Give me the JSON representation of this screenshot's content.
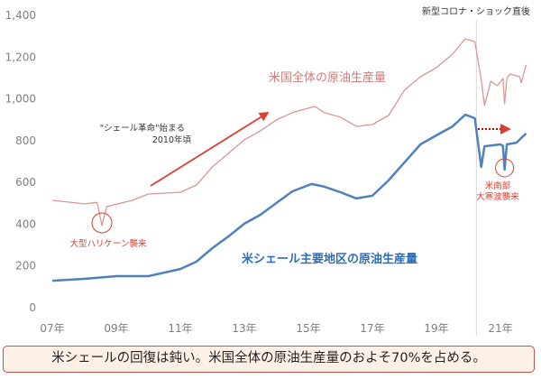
{
  "chart_data": {
    "type": "line",
    "title": "",
    "xlabel": "",
    "ylabel": "",
    "ylim": [
      0,
      1400
    ],
    "yticks": [
      "0",
      "200",
      "400",
      "600",
      "800",
      "1,000",
      "1,200",
      "1,400"
    ],
    "ytick_values": [
      0,
      200,
      400,
      600,
      800,
      1000,
      1200,
      1400
    ],
    "xticks": [
      "07年",
      "09年",
      "11年",
      "13年",
      "15年",
      "17年",
      "19年",
      "21年"
    ],
    "xtick_values": [
      2007,
      2009,
      2011,
      2013,
      2015,
      2017,
      2019,
      2021
    ],
    "xlim": [
      2007,
      2021.9
    ],
    "grid": false,
    "series": [
      {
        "name": "米国全体の原油生産量",
        "color": "#d99694",
        "x": [
          2007,
          2008,
          2008.4,
          2008.55,
          2008.7,
          2009.5,
          2010,
          2011,
          2011.5,
          2012,
          2012.5,
          2013,
          2013.5,
          2014,
          2014.5,
          2015.2,
          2015.5,
          2016,
          2016.5,
          2017,
          2017.5,
          2018,
          2018.5,
          2019,
          2019.5,
          2019.9,
          2020.2,
          2020.4,
          2020.5,
          2020.7,
          2020.9,
          2021.08,
          2021.13,
          2021.2,
          2021.3,
          2021.6,
          2021.65,
          2021.8
        ],
        "y": [
          510,
          493,
          500,
          390,
          480,
          510,
          540,
          549,
          583,
          670,
          735,
          800,
          843,
          895,
          930,
          960,
          930,
          908,
          864,
          873,
          916,
          1037,
          1102,
          1145,
          1210,
          1283,
          1270,
          1089,
          964,
          1080,
          1059,
          1093,
          972,
          1093,
          1115,
          1102,
          1072,
          1158
        ]
      },
      {
        "name": "米シェール主要地区の原油生産量",
        "color": "#4f81bd",
        "x": [
          2007,
          2008,
          2009,
          2010,
          2011,
          2011.5,
          2012,
          2012.5,
          2013,
          2013.5,
          2014,
          2014.5,
          2015.1,
          2015.5,
          2016,
          2016.5,
          2017,
          2017.5,
          2018,
          2018.5,
          2019,
          2019.5,
          2019.9,
          2020.2,
          2020.4,
          2020.5,
          2021.0,
          2021.08,
          2021.13,
          2021.2,
          2021.5,
          2021.8
        ],
        "y": [
          125,
          134,
          147,
          147,
          181,
          216,
          281,
          337,
          398,
          441,
          497,
          553,
          588,
          575,
          549,
          519,
          532,
          605,
          691,
          778,
          821,
          864,
          920,
          903,
          670,
          769,
          778,
          770,
          657,
          778,
          786,
          830
        ]
      }
    ],
    "annotations": {
      "covid": "新型コロナ・ショック直後",
      "shale_revolution_line1": "\"シェール革命\"始まる",
      "shale_revolution_line2": "2010年頃",
      "hurricane": "大型ハリケーン襲来",
      "freeze_line1": "米南部",
      "freeze_line2": "大寒波襲来"
    },
    "annotation_color": "#e03c31"
  },
  "caption": "米シェールの回復は鈍い。米国全体の原油生産量のおよそ70%を占める。"
}
